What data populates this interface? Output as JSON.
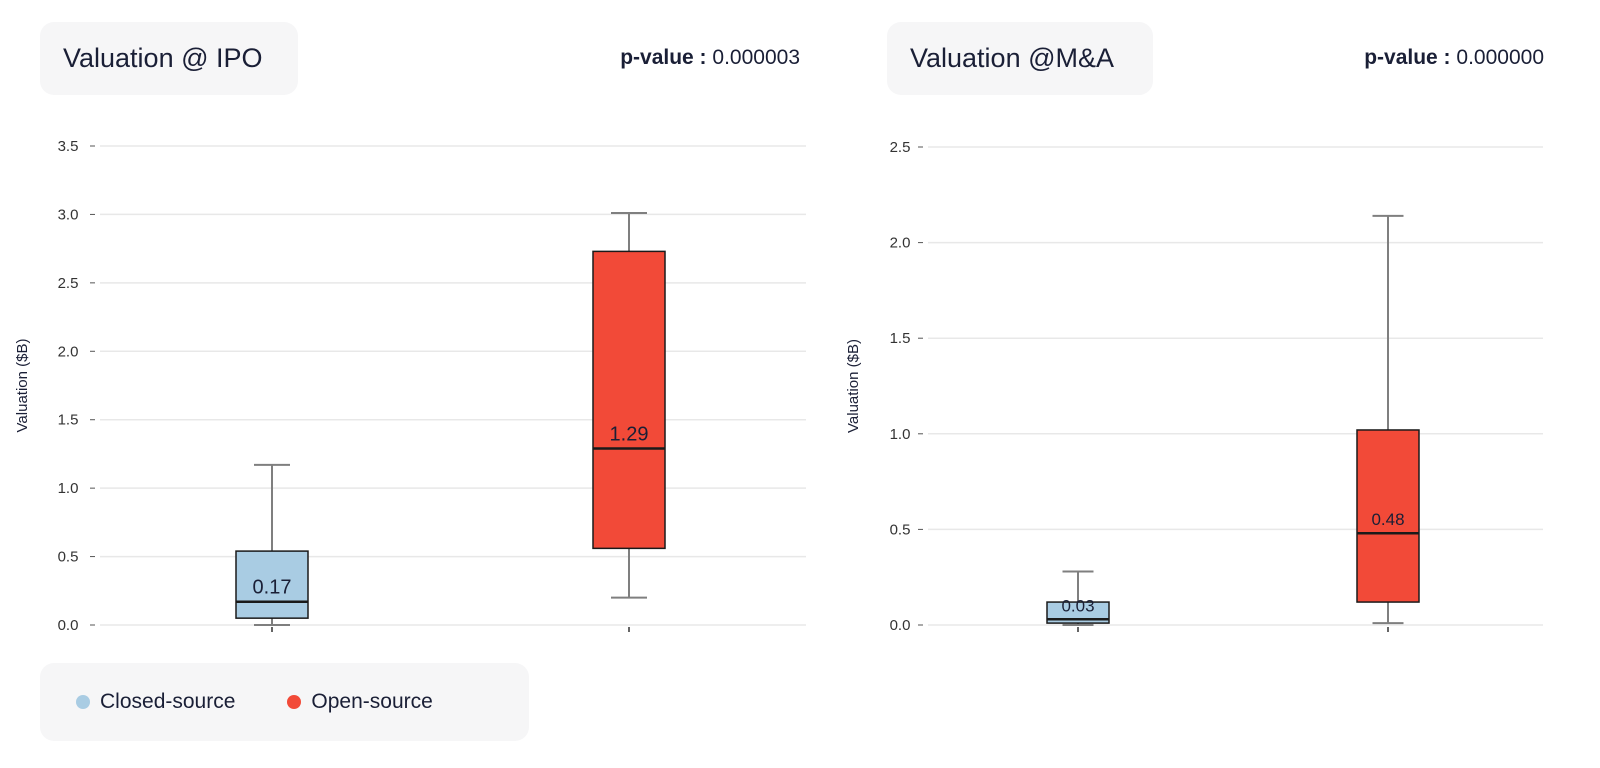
{
  "colors": {
    "closed": "#a9cce3",
    "open": "#f24a38",
    "whisker": "#7f7f7f",
    "grid": "#e8e8e8",
    "text": "#1a1f36"
  },
  "legend": {
    "items": [
      {
        "label": "Closed-source",
        "color": "#a9cce3"
      },
      {
        "label": "Open-source",
        "color": "#f24a38"
      }
    ]
  },
  "panels": [
    {
      "title": "Valuation @ IPO",
      "pvalue_label": "p-value :",
      "pvalue": "0.000003"
    },
    {
      "title": "Valuation @M&A",
      "pvalue_label": "p-value :",
      "pvalue": "0.000000"
    }
  ],
  "chart_data": [
    {
      "type": "box",
      "title": "Valuation @ IPO",
      "xlabel": "",
      "ylabel": "Valuation ($B)",
      "ylim": [
        0,
        3.5
      ],
      "yticks": [
        "0.0",
        "0.5",
        "1.0",
        "1.5",
        "2.0",
        "2.5",
        "3.0",
        "3.5"
      ],
      "grid": true,
      "series": [
        {
          "name": "Closed-source",
          "min": 0.0,
          "q1": 0.05,
          "median": 0.17,
          "q3": 0.54,
          "max": 1.17,
          "median_label": "0.17"
        },
        {
          "name": "Open-source",
          "min": 0.2,
          "q1": 0.56,
          "median": 1.29,
          "q3": 2.73,
          "max": 3.01,
          "median_label": "1.29"
        }
      ]
    },
    {
      "type": "box",
      "title": "Valuation @M&A",
      "xlabel": "",
      "ylabel": "Valuation ($B)",
      "ylim": [
        0,
        2.5
      ],
      "yticks": [
        "0.0",
        "0.5",
        "1.0",
        "1.5",
        "2.0",
        "2.5"
      ],
      "grid": true,
      "series": [
        {
          "name": "Closed-source",
          "min": 0.0,
          "q1": 0.01,
          "median": 0.03,
          "q3": 0.12,
          "max": 0.28,
          "median_label": "0.03"
        },
        {
          "name": "Open-source",
          "min": 0.01,
          "q1": 0.12,
          "median": 0.48,
          "q3": 1.02,
          "max": 2.14,
          "median_label": "0.48"
        }
      ]
    }
  ]
}
